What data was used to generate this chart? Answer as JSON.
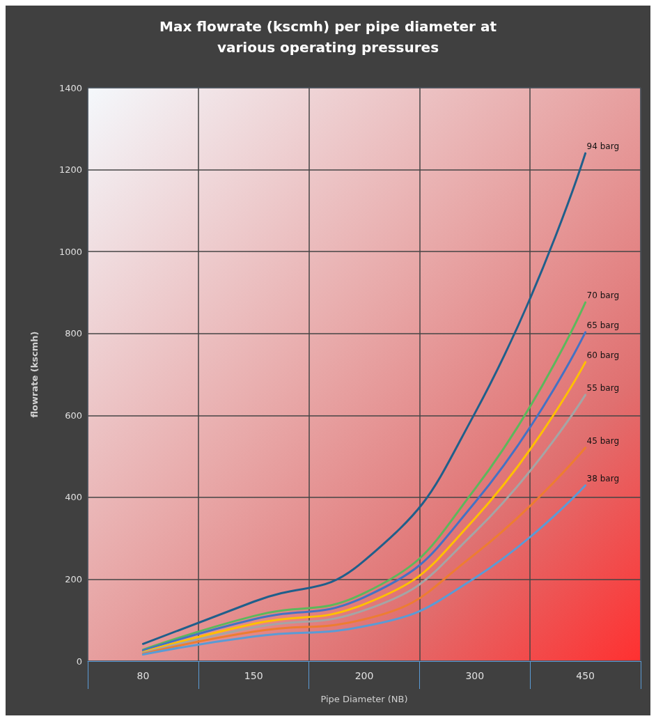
{
  "chart_data": {
    "type": "line",
    "title": "Max flowrate (kscmh) per pipe diameter at\nvarious operating pressures",
    "xlabel": "Pipe Diameter (NB)",
    "ylabel": "flowrate (kscmh)",
    "categories": [
      "80",
      "150",
      "200",
      "300",
      "450"
    ],
    "series": [
      {
        "name": "94 barg",
        "color": "#1f5f8b",
        "values": [
          42,
          145,
          245,
          605,
          1240
        ]
      },
      {
        "name": "70 barg",
        "color": "#5cb85c",
        "values": [
          28,
          110,
          166,
          420,
          876
        ]
      },
      {
        "name": "65 barg",
        "color": "#4472c4",
        "values": [
          26,
          102,
          156,
          387,
          803
        ]
      },
      {
        "name": "60 barg",
        "color": "#ffc000",
        "values": [
          22,
          91,
          139,
          348,
          730
        ]
      },
      {
        "name": "55 barg",
        "color": "#a5a5a5",
        "values": [
          20,
          82,
          124,
          315,
          650
        ]
      },
      {
        "name": "45 barg",
        "color": "#ed7d31",
        "values": [
          18,
          72,
          102,
          261,
          521
        ]
      },
      {
        "name": "38 barg",
        "color": "#5b9bd5",
        "values": [
          16,
          60,
          85,
          203,
          429
        ]
      }
    ],
    "ylim": [
      0,
      1400
    ],
    "yticks": [
      0,
      200,
      400,
      600,
      800,
      1000,
      1200,
      1400
    ],
    "grid": true,
    "legend": false,
    "marker": "none",
    "line_style": "solid"
  }
}
